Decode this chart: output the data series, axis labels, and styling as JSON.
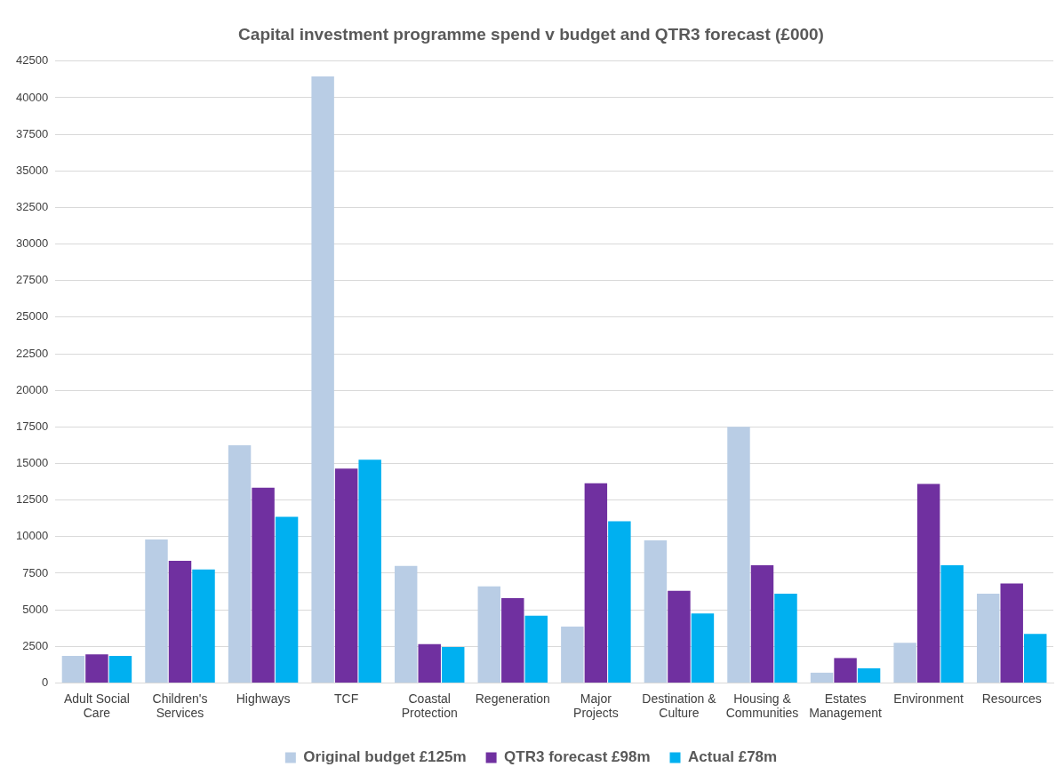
{
  "chart_data": {
    "type": "bar",
    "title": "Capital investment programme spend v budget and QTR3 forecast (£000)",
    "categories": [
      "Adult Social Care",
      "Children's Services",
      "Highways",
      "TCF",
      "Coastal Protection",
      "Regeneration",
      "Major Projects",
      "Destination & Culture",
      "Housing & Communities",
      "Estates Management",
      "Environment",
      "Resources"
    ],
    "series": [
      {
        "name": "Original budget £125m",
        "color": "#b9cde5",
        "values": [
          1850,
          9800,
          16250,
          41450,
          8000,
          6600,
          3850,
          9750,
          17500,
          700,
          2750,
          6100
        ]
      },
      {
        "name": "QTR3 forecast £98m",
        "color": "#7030a0",
        "values": [
          1950,
          8350,
          13350,
          14650,
          2650,
          5800,
          13650,
          6300,
          8050,
          1700,
          13600,
          6800
        ]
      },
      {
        "name": "Actual £78m",
        "color": "#00b0f0",
        "values": [
          1850,
          7750,
          11350,
          15250,
          2450,
          4600,
          11050,
          4750,
          6100,
          1000,
          8050,
          3350
        ]
      }
    ],
    "ylim": [
      0,
      42500
    ],
    "yticks": [
      0,
      2500,
      5000,
      7500,
      10000,
      12500,
      15000,
      17500,
      20000,
      22500,
      25000,
      27500,
      30000,
      32500,
      35000,
      37500,
      40000,
      42500
    ],
    "grid": "y",
    "legend": "bottom"
  }
}
